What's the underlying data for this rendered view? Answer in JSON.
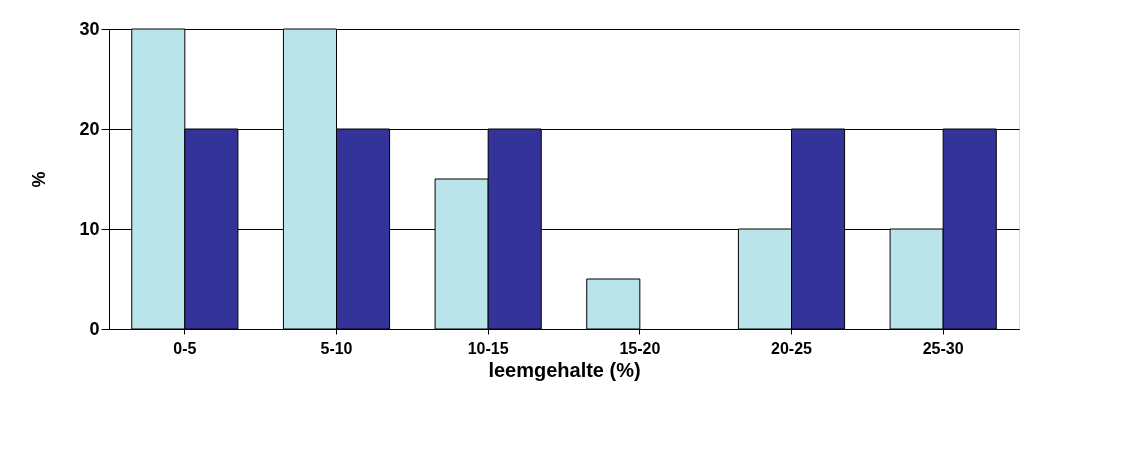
{
  "chart_data": {
    "type": "bar",
    "xlabel": "leemgehalte (%)",
    "ylabel": "%",
    "categories": [
      "0-5",
      "5-10",
      "10-15",
      "15-20",
      "20-25",
      "25-30"
    ],
    "series": [
      {
        "color": "#b8e4ea",
        "values": [
          30,
          30,
          15,
          5,
          10,
          10
        ]
      },
      {
        "color": "#333399",
        "values": [
          20,
          20,
          20,
          null,
          20,
          20
        ]
      }
    ],
    "ylim": [
      0,
      30
    ],
    "yticks": [
      0,
      10,
      20,
      30
    ],
    "grid": "y",
    "legend": false
  }
}
